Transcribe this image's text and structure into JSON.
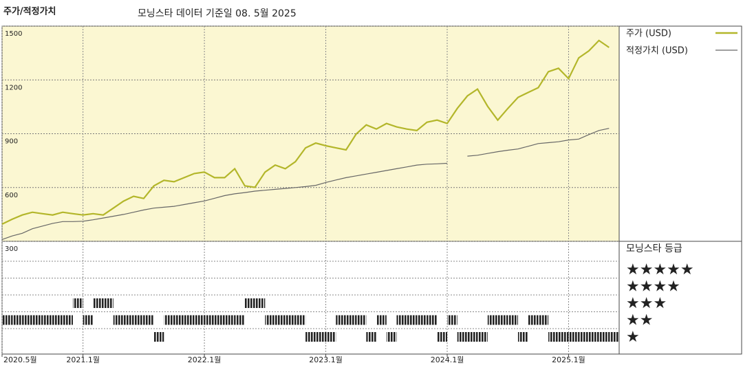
{
  "chart_data": {
    "type": "line",
    "title": "주가/적정가치",
    "subtitle": "모닝스타 데이터 기준일 08. 5월 2025",
    "x": [
      "2020-05",
      "2020-06",
      "2020-07",
      "2020-08",
      "2020-09",
      "2020-10",
      "2020-11",
      "2020-12",
      "2021-01",
      "2021-02",
      "2021-03",
      "2021-04",
      "2021-05",
      "2021-06",
      "2021-07",
      "2021-08",
      "2021-09",
      "2021-10",
      "2021-11",
      "2021-12",
      "2022-01",
      "2022-02",
      "2022-03",
      "2022-04",
      "2022-05",
      "2022-06",
      "2022-07",
      "2022-08",
      "2022-09",
      "2022-10",
      "2022-11",
      "2022-12",
      "2023-01",
      "2023-02",
      "2023-03",
      "2023-04",
      "2023-05",
      "2023-06",
      "2023-07",
      "2023-08",
      "2023-09",
      "2023-10",
      "2023-11",
      "2023-12",
      "2024-01",
      "2024-02",
      "2024-03",
      "2024-04",
      "2024-05",
      "2024-06",
      "2024-07",
      "2024-08",
      "2024-09",
      "2024-10",
      "2024-11",
      "2024-12",
      "2025-01",
      "2025-02",
      "2025-03",
      "2025-04",
      "2025-05"
    ],
    "series": [
      {
        "name": "주가 (USD)",
        "color": "#b3b62a",
        "values": [
          396,
          423,
          447,
          462,
          454,
          447,
          462,
          454,
          447,
          454,
          447,
          485,
          524,
          551,
          539,
          609,
          640,
          632,
          655,
          678,
          686,
          655,
          655,
          705,
          609,
          601,
          686,
          725,
          705,
          744,
          821,
          848,
          833,
          821,
          810,
          898,
          949,
          926,
          957,
          938,
          926,
          918,
          964,
          976,
          957,
          1041,
          1111,
          1149,
          1053,
          976,
          1041,
          1103,
          1130,
          1157,
          1246,
          1265,
          1207,
          1323,
          1362,
          1420,
          1381
        ]
      },
      {
        "name": "적정가치 (USD)",
        "color": "#666666",
        "values": [
          310,
          330,
          345,
          370,
          385,
          400,
          410,
          410,
          412,
          420,
          430,
          440,
          450,
          462,
          475,
          485,
          490,
          495,
          505,
          515,
          525,
          540,
          555,
          565,
          572,
          580,
          585,
          590,
          595,
          600,
          605,
          612,
          628,
          642,
          655,
          665,
          675,
          685,
          695,
          705,
          715,
          725,
          730,
          732,
          735,
          null,
          775,
          780,
          790,
          800,
          808,
          815,
          830,
          845,
          850,
          855,
          865,
          870,
          895,
          918,
          930
        ]
      }
    ],
    "xlim": [
      "2020-05",
      "2025-06"
    ],
    "xticks": [
      {
        "value": "2020-05",
        "label": "2020.5월"
      },
      {
        "value": "2021-01",
        "label": "2021.1월"
      },
      {
        "value": "2022-01",
        "label": "2022.1월"
      },
      {
        "value": "2023-01",
        "label": "2023.1월"
      },
      {
        "value": "2024-01",
        "label": "2024.1월"
      },
      {
        "value": "2025-01",
        "label": "2025.1월"
      }
    ],
    "ylim": [
      300,
      1500
    ],
    "yticks": [
      300,
      600,
      900,
      1200,
      1500
    ],
    "grid": true,
    "ratings": {
      "title": "모닝스타 등급",
      "levels": [
        "★",
        "★★",
        "★★★",
        "★★★★",
        "★★★★★"
      ],
      "values": [
        2,
        2,
        2,
        2,
        2,
        2,
        2,
        3,
        2,
        3,
        3,
        2,
        2,
        2,
        2,
        1,
        2,
        2,
        2,
        2,
        2,
        2,
        2,
        2,
        3,
        3,
        2,
        2,
        2,
        2,
        1,
        1,
        1,
        2,
        2,
        2,
        1,
        2,
        1,
        2,
        2,
        2,
        2,
        1,
        2,
        1,
        1,
        1,
        2,
        2,
        2,
        1,
        2,
        2,
        1,
        1,
        1,
        1,
        1,
        1,
        1
      ]
    }
  }
}
